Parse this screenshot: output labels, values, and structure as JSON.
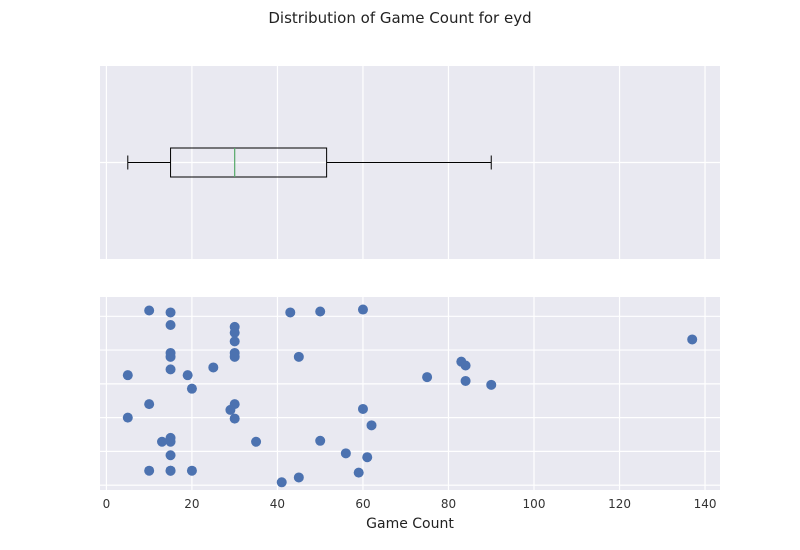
{
  "chart_data": {
    "type": "box+scatter",
    "title": "Distribution of Game Count for eyd",
    "xlabel": "Game Count",
    "xlim": [
      -1.5,
      143.5
    ],
    "xticks": [
      0,
      20,
      40,
      60,
      80,
      100,
      120,
      140
    ],
    "box": {
      "whisker_low": 5,
      "q1": 15,
      "median": 30,
      "q3": 51.5,
      "whisker_high": 90,
      "outliers": [
        137
      ]
    },
    "points": [
      {
        "x": 10,
        "y": 0.93
      },
      {
        "x": 15,
        "y": 0.92
      },
      {
        "x": 43,
        "y": 0.92
      },
      {
        "x": 50,
        "y": 0.925
      },
      {
        "x": 60,
        "y": 0.935
      },
      {
        "x": 15,
        "y": 0.855
      },
      {
        "x": 30,
        "y": 0.845
      },
      {
        "x": 30,
        "y": 0.815
      },
      {
        "x": 30,
        "y": 0.77
      },
      {
        "x": 15,
        "y": 0.71
      },
      {
        "x": 30,
        "y": 0.71
      },
      {
        "x": 15,
        "y": 0.69
      },
      {
        "x": 30,
        "y": 0.69
      },
      {
        "x": 45,
        "y": 0.69
      },
      {
        "x": 137,
        "y": 0.78
      },
      {
        "x": 83,
        "y": 0.665
      },
      {
        "x": 84,
        "y": 0.645
      },
      {
        "x": 25,
        "y": 0.635
      },
      {
        "x": 15,
        "y": 0.625
      },
      {
        "x": 5,
        "y": 0.595
      },
      {
        "x": 19,
        "y": 0.595
      },
      {
        "x": 75,
        "y": 0.585
      },
      {
        "x": 84,
        "y": 0.565
      },
      {
        "x": 20,
        "y": 0.525
      },
      {
        "x": 90,
        "y": 0.545
      },
      {
        "x": 10,
        "y": 0.445
      },
      {
        "x": 30,
        "y": 0.445
      },
      {
        "x": 29,
        "y": 0.415
      },
      {
        "x": 60,
        "y": 0.42
      },
      {
        "x": 5,
        "y": 0.375
      },
      {
        "x": 30,
        "y": 0.37
      },
      {
        "x": 62,
        "y": 0.335
      },
      {
        "x": 15,
        "y": 0.27
      },
      {
        "x": 13,
        "y": 0.25
      },
      {
        "x": 15,
        "y": 0.25
      },
      {
        "x": 35,
        "y": 0.25
      },
      {
        "x": 50,
        "y": 0.255
      },
      {
        "x": 15,
        "y": 0.18
      },
      {
        "x": 56,
        "y": 0.19
      },
      {
        "x": 61,
        "y": 0.17
      },
      {
        "x": 10,
        "y": 0.1
      },
      {
        "x": 15,
        "y": 0.1
      },
      {
        "x": 15,
        "y": 0.1
      },
      {
        "x": 20,
        "y": 0.1
      },
      {
        "x": 59,
        "y": 0.09
      },
      {
        "x": 45,
        "y": 0.065
      },
      {
        "x": 41,
        "y": 0.04
      }
    ]
  }
}
